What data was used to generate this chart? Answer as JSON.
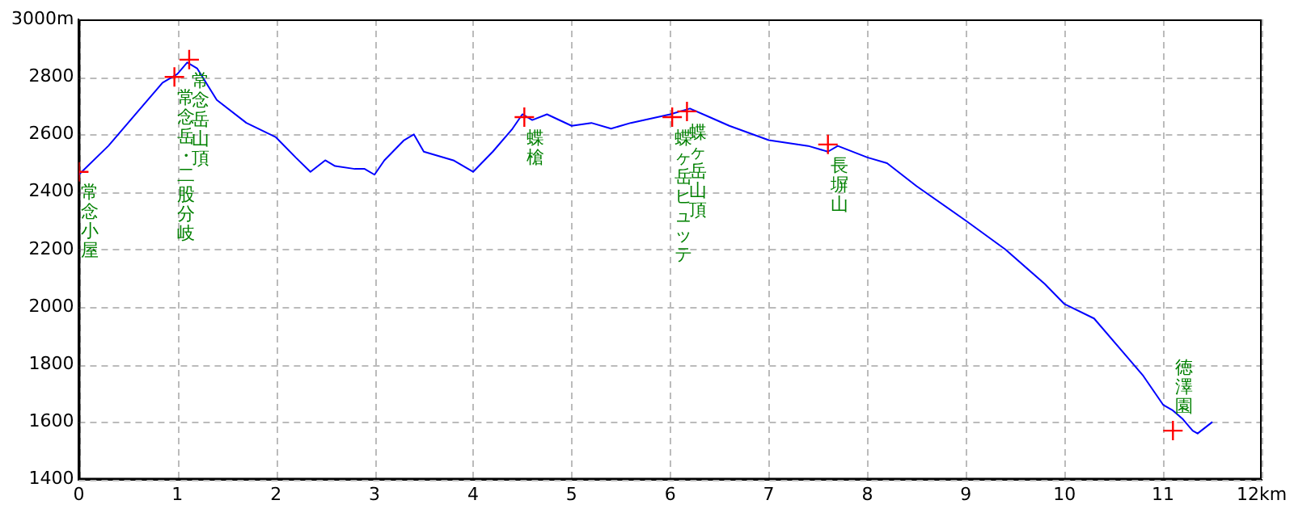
{
  "chart_data": {
    "type": "line",
    "xlim": [
      0,
      12
    ],
    "xticks": [
      0,
      1,
      2,
      3,
      4,
      5,
      6,
      7,
      8,
      9,
      10,
      11,
      {
        "value": 12,
        "label": "12km"
      }
    ],
    "ylim": [
      1400,
      3000
    ],
    "yticks": [
      1400,
      1600,
      1800,
      2000,
      2200,
      2400,
      2600,
      2800,
      {
        "value": 3000,
        "label": "3000m"
      }
    ],
    "grid": true,
    "legend": false,
    "series": [
      {
        "type": "line",
        "color": "#0000ff",
        "marker": "none",
        "x": [
          0,
          0.3,
          0.6,
          0.85,
          1.0,
          1.1,
          1.2,
          1.4,
          1.7,
          2.0,
          2.2,
          2.35,
          2.5,
          2.6,
          2.8,
          2.9,
          3.0,
          3.1,
          3.3,
          3.4,
          3.5,
          3.8,
          4.0,
          4.2,
          4.4,
          4.5,
          4.6,
          4.75,
          5.0,
          5.2,
          5.4,
          5.6,
          6.0,
          6.2,
          6.4,
          6.6,
          7.0,
          7.4,
          7.6,
          7.7,
          8.0,
          8.2,
          8.5,
          9.0,
          9.4,
          9.8,
          10.0,
          10.3,
          10.6,
          10.8,
          11.0,
          11.1,
          11.2,
          11.3,
          11.35,
          11.5
        ],
        "values": [
          2460,
          2560,
          2680,
          2780,
          2810,
          2850,
          2830,
          2720,
          2640,
          2590,
          2520,
          2470,
          2510,
          2490,
          2480,
          2480,
          2460,
          2510,
          2580,
          2600,
          2540,
          2510,
          2470,
          2540,
          2620,
          2670,
          2650,
          2670,
          2630,
          2640,
          2620,
          2640,
          2670,
          2690,
          2660,
          2630,
          2580,
          2560,
          2540,
          2560,
          2520,
          2500,
          2420,
          2300,
          2200,
          2080,
          2010,
          1960,
          1840,
          1760,
          1660,
          1640,
          1610,
          1570,
          1560,
          1600
        ]
      },
      {
        "type": "scatter",
        "color": "#ff0000",
        "marker": "cross",
        "x": [
          0,
          0.97,
          1.12,
          4.52,
          6.02,
          6.17,
          7.6,
          11.1
        ],
        "values": [
          2470,
          2800,
          2860,
          2660,
          2660,
          2680,
          2565,
          1570
        ]
      }
    ],
    "annotations": [
      {
        "text": "常念小屋",
        "x": 0,
        "y": 2470
      },
      {
        "text": "常念岳・二股分岐",
        "x": 0.97,
        "y": 2800
      },
      {
        "text": "常念岳山頂",
        "x": 1.12,
        "y": 2860
      },
      {
        "text": "蝶槍",
        "x": 4.52,
        "y": 2660
      },
      {
        "text": "蝶ヶ岳ヒュッテ",
        "x": 6.02,
        "y": 2660
      },
      {
        "text": "蝶ヶ岳山頂",
        "x": 6.17,
        "y": 2680
      },
      {
        "text": "長塀山",
        "x": 7.6,
        "y": 2565
      },
      {
        "text": "徳澤園",
        "x": 11.1,
        "y": 1570
      }
    ]
  }
}
